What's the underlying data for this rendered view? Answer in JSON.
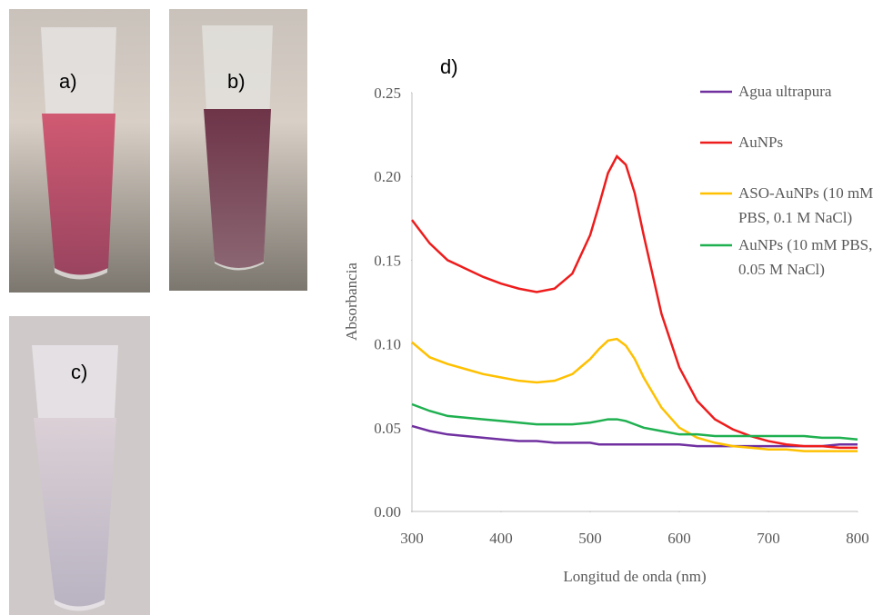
{
  "panels": {
    "a": "a)",
    "b": "b)",
    "c": "c)",
    "d": "d)"
  },
  "chart_data": {
    "type": "line",
    "x_label": "Longitud de onda (nm)",
    "y_label": "Absorbancia",
    "x": [
      300,
      320,
      340,
      360,
      380,
      400,
      420,
      440,
      460,
      480,
      500,
      510,
      520,
      530,
      540,
      550,
      560,
      580,
      600,
      620,
      640,
      660,
      680,
      700,
      720,
      740,
      760,
      780,
      800
    ],
    "xlim": [
      300,
      800
    ],
    "xticks": [
      300,
      400,
      500,
      600,
      700,
      800
    ],
    "ylim": [
      0,
      0.25
    ],
    "yticks": [
      {
        "value": 0,
        "label": "0.00"
      },
      0.05,
      {
        "value": 0.1,
        "label": "0.10"
      },
      0.15,
      {
        "value": 0.2,
        "label": "0.20"
      },
      0.25
    ],
    "grid": false,
    "legend": "right",
    "series": [
      {
        "name": "Agua ultrapura",
        "color": "#7030a0",
        "values": [
          0.051,
          0.048,
          0.046,
          0.045,
          0.044,
          0.043,
          0.042,
          0.042,
          0.041,
          0.041,
          0.041,
          0.04,
          0.04,
          0.04,
          0.04,
          0.04,
          0.04,
          0.04,
          0.04,
          0.039,
          0.039,
          0.039,
          0.039,
          0.039,
          0.039,
          0.039,
          0.039,
          0.04,
          0.04
        ]
      },
      {
        "name": "AuNPs",
        "color": "#ee1c1c",
        "values": [
          0.174,
          0.16,
          0.15,
          0.145,
          0.14,
          0.136,
          0.133,
          0.131,
          0.133,
          0.142,
          0.165,
          0.183,
          0.202,
          0.212,
          0.207,
          0.19,
          0.165,
          0.118,
          0.086,
          0.066,
          0.055,
          0.049,
          0.045,
          0.042,
          0.04,
          0.039,
          0.039,
          0.038,
          0.038
        ]
      },
      {
        "name": "ASO-AuNPs (10 mM PBS, 0.1 M NaCl)",
        "color": "#ffc000",
        "values": [
          0.101,
          0.092,
          0.088,
          0.085,
          0.082,
          0.08,
          0.078,
          0.077,
          0.078,
          0.082,
          0.091,
          0.097,
          0.102,
          0.103,
          0.099,
          0.091,
          0.08,
          0.062,
          0.05,
          0.044,
          0.041,
          0.039,
          0.038,
          0.037,
          0.037,
          0.036,
          0.036,
          0.036,
          0.036
        ]
      },
      {
        "name": "AuNPs (10 mM PBS, 0.05 M NaCl)",
        "color": "#1fb050",
        "values": [
          0.064,
          0.06,
          0.057,
          0.056,
          0.055,
          0.054,
          0.053,
          0.052,
          0.052,
          0.052,
          0.053,
          0.054,
          0.055,
          0.055,
          0.054,
          0.052,
          0.05,
          0.048,
          0.046,
          0.046,
          0.045,
          0.045,
          0.045,
          0.045,
          0.045,
          0.045,
          0.044,
          0.044,
          0.043
        ]
      }
    ]
  }
}
